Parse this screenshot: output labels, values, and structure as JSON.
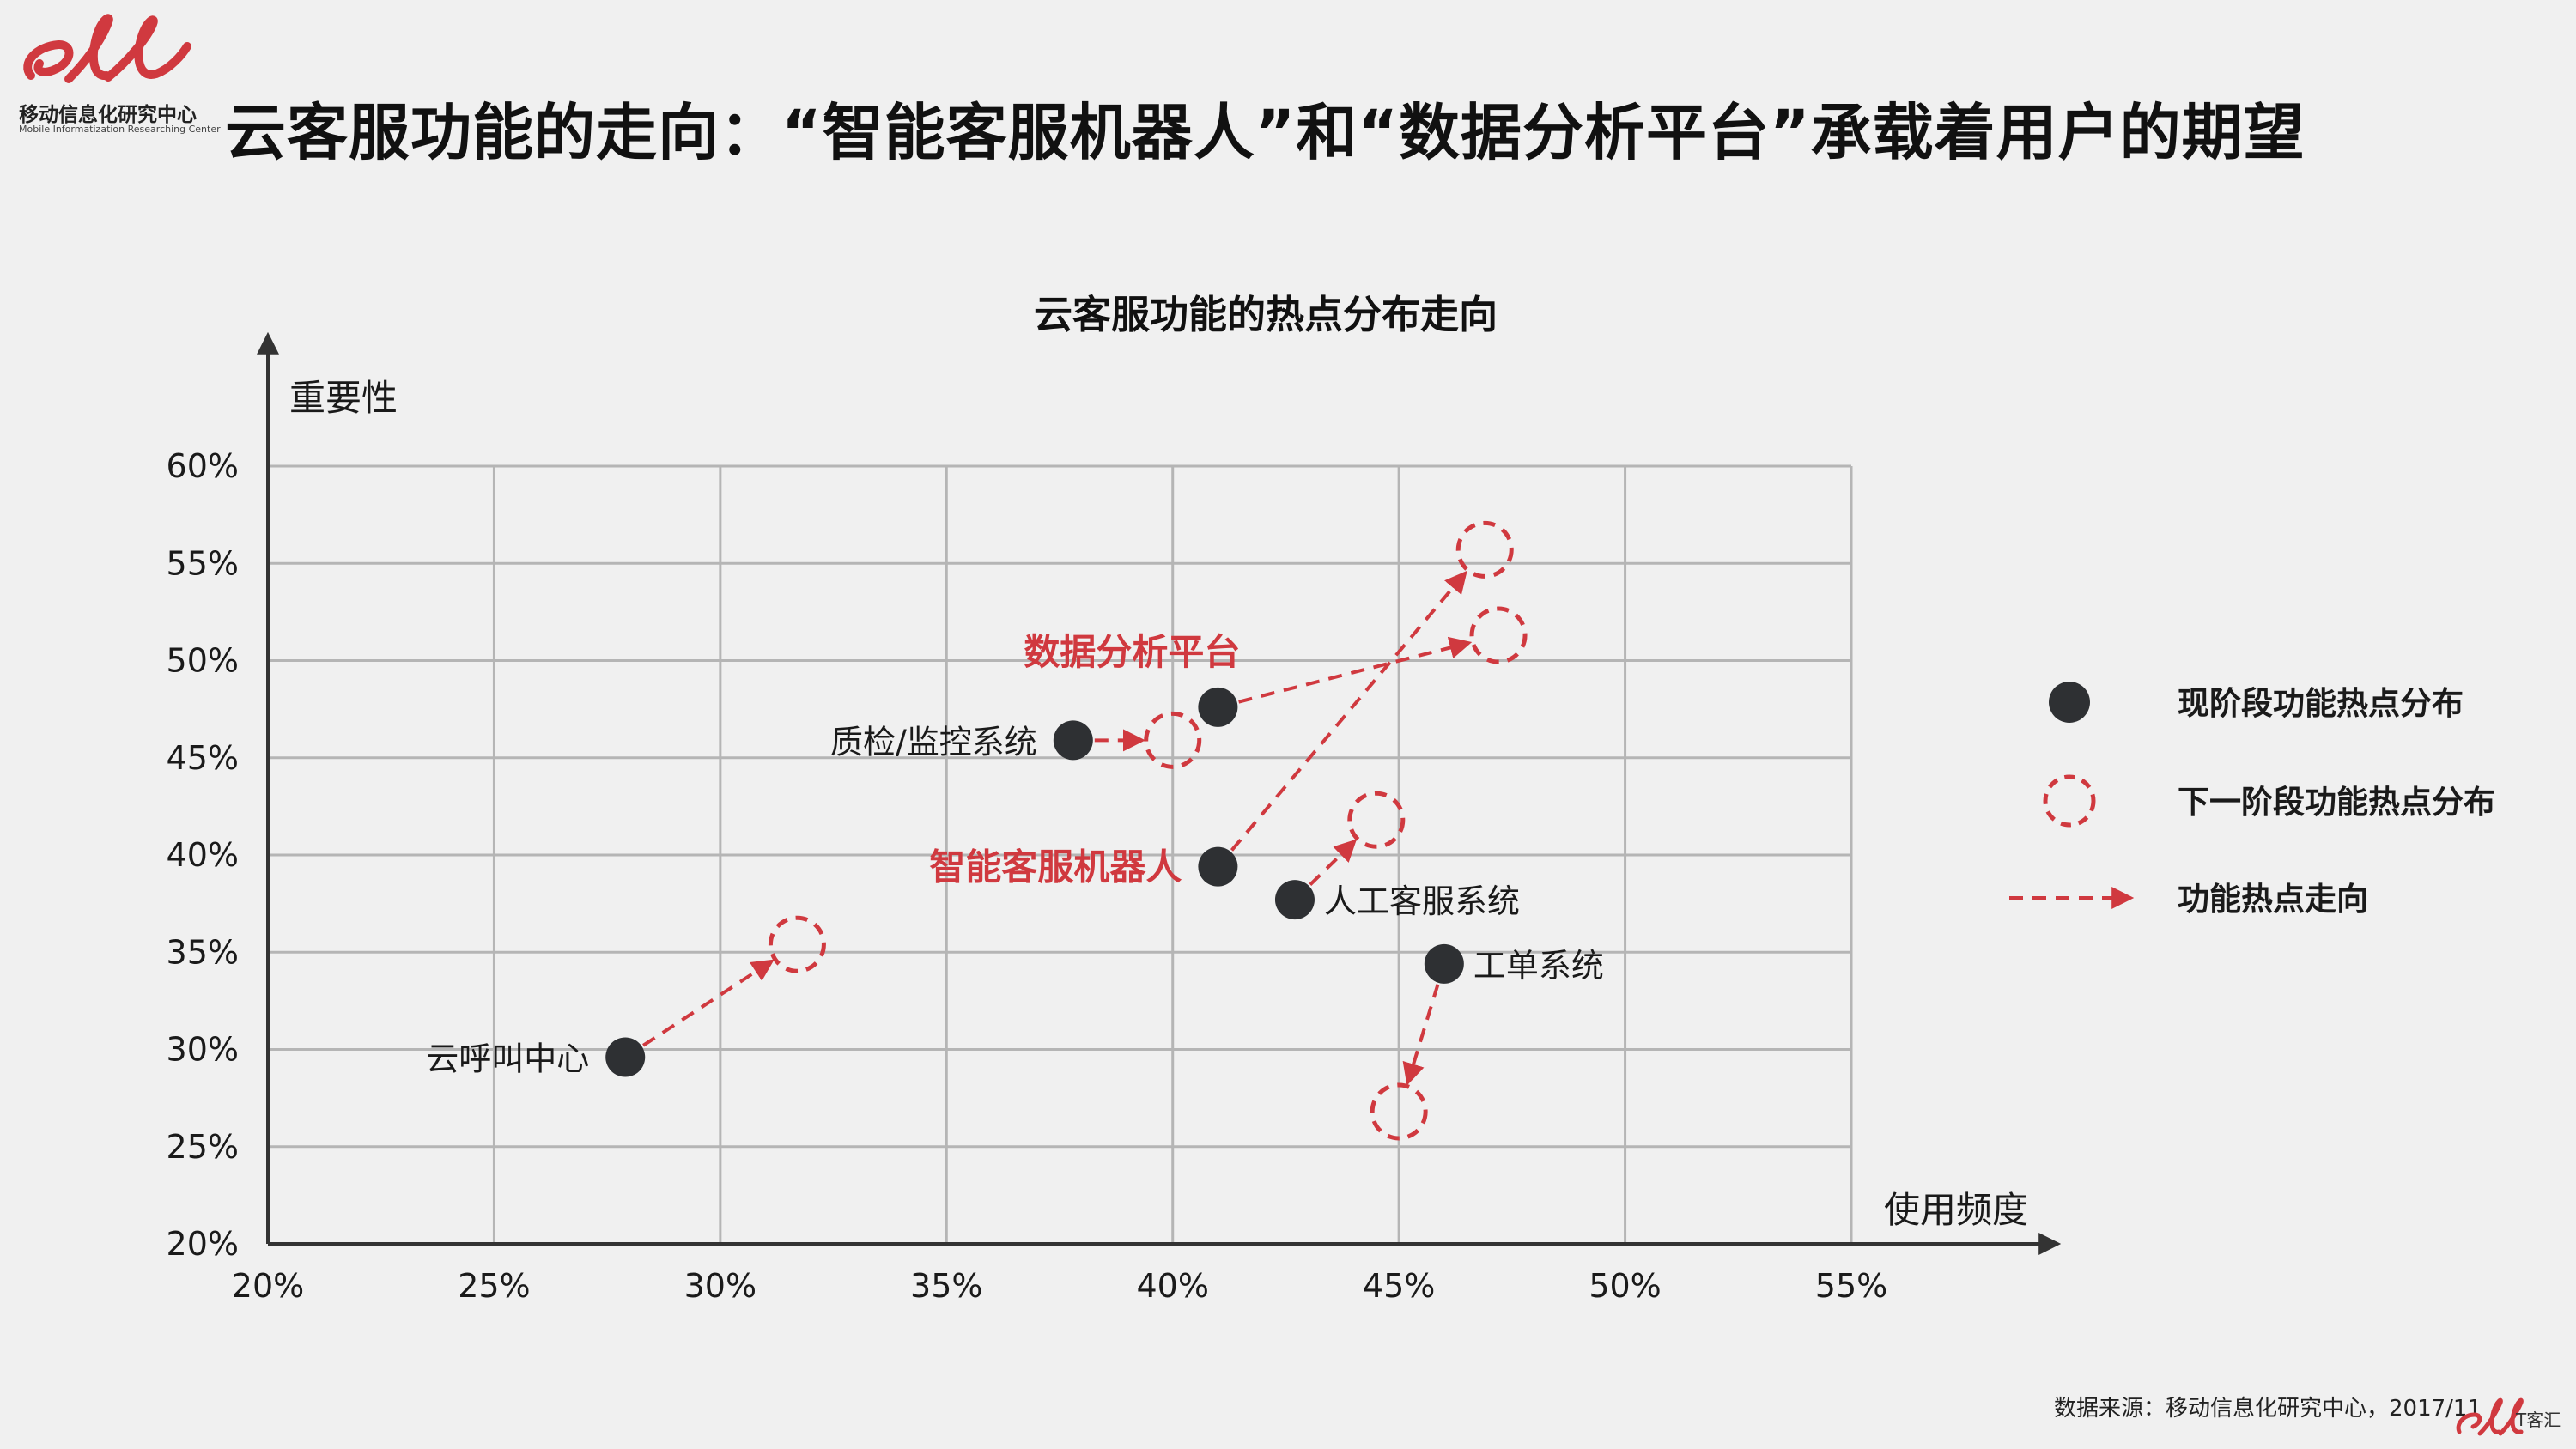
{
  "header": {
    "logo_cn": "移动信息化研究中心",
    "logo_en": "Mobile Informatization Researching Center",
    "headline": "云客服功能的走向：“智能客服机器人”和“数据分析平台”承载着用户的期望"
  },
  "footer": {
    "source": "数据来源：移动信息化研究中心，2017/11",
    "brand_text": "T客汇"
  },
  "colors": {
    "accent": "#d0393f",
    "dot": "#2e3033",
    "grid": "#b5b5b5",
    "axis": "#333333"
  },
  "chart_data": {
    "type": "scatter",
    "title": "云客服功能的热点分布走向",
    "xlabel": "使用频度",
    "ylabel": "重要性",
    "xlim": [
      20,
      55
    ],
    "ylim": [
      20,
      60
    ],
    "x_ticks": [
      "20%",
      "25%",
      "30%",
      "35%",
      "40%",
      "45%",
      "50%",
      "55%"
    ],
    "y_ticks": [
      "20%",
      "25%",
      "30%",
      "35%",
      "40%",
      "45%",
      "50%",
      "55%",
      "60%"
    ],
    "grid": true,
    "legend": {
      "placement": "right",
      "items": [
        {
          "key": "current",
          "label": "现阶段功能热点分布"
        },
        {
          "key": "next",
          "label": "下一阶段功能热点分布"
        },
        {
          "key": "arrow",
          "label": "功能热点走向"
        }
      ]
    },
    "points": [
      {
        "label": "云呼叫中心",
        "highlight": false,
        "label_side": "left",
        "current": [
          27.9,
          29.6
        ],
        "next": [
          [
            31.7,
            35.4
          ]
        ]
      },
      {
        "label": "质检/监控系统",
        "highlight": false,
        "label_side": "left",
        "current": [
          37.8,
          45.9
        ],
        "next": [
          [
            40.0,
            45.9
          ]
        ]
      },
      {
        "label": "数据分析平台",
        "highlight": true,
        "label_side": "above",
        "current": [
          41.0,
          47.6
        ],
        "next": [
          [
            47.2,
            51.3
          ]
        ]
      },
      {
        "label": "智能客服机器人",
        "highlight": true,
        "label_side": "left",
        "current": [
          41.0,
          39.4
        ],
        "next": [
          [
            46.9,
            55.7
          ]
        ]
      },
      {
        "label": "人工客服系统",
        "highlight": false,
        "label_side": "right",
        "current": [
          42.7,
          37.7
        ],
        "next": [
          [
            44.5,
            41.8
          ]
        ]
      },
      {
        "label": "工单系统",
        "highlight": false,
        "label_side": "right",
        "current": [
          46.0,
          34.4
        ],
        "next": [
          [
            45.0,
            26.8
          ]
        ]
      }
    ]
  }
}
